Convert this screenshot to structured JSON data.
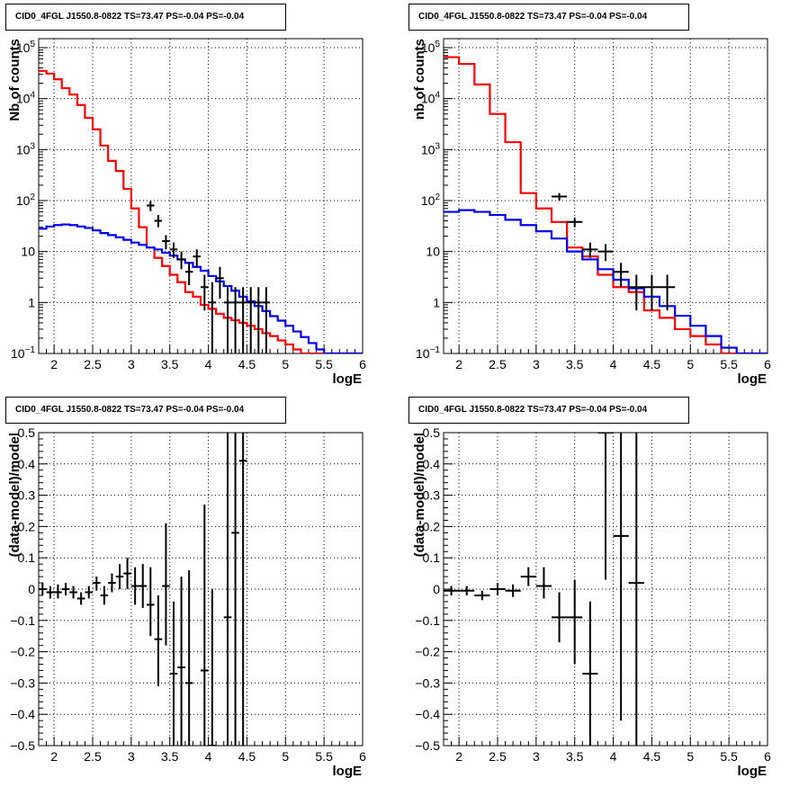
{
  "chart_data": [
    {
      "type": "line",
      "title": "CID0_4FGL J1550.8-0822 TS=73.47 PS=-0.04 PS=-0.04",
      "xlabel": "logE",
      "ylabel": "Nb of counts",
      "xlim": [
        1.8,
        6
      ],
      "ylim": [
        0.1,
        150000
      ],
      "yscale": "log",
      "grid": true,
      "xticks": [
        "2",
        "2.5",
        "3",
        "3.5",
        "4",
        "4.5",
        "5",
        "5.5",
        "6"
      ],
      "yticks": [
        {
          "v": 0.1,
          "label": "10",
          "exp": "−1"
        },
        {
          "v": 1,
          "label": "1",
          "exp": ""
        },
        {
          "v": 10,
          "label": "10",
          "exp": ""
        },
        {
          "v": 100,
          "label": "10",
          "exp": "2"
        },
        {
          "v": 1000,
          "label": "10",
          "exp": "3"
        },
        {
          "v": 10000,
          "label": "10",
          "exp": "4"
        },
        {
          "v": 100000,
          "label": "10",
          "exp": "5"
        }
      ],
      "bin_width": 0.1,
      "series": [
        {
          "color": "#ff0000",
          "kind": "step",
          "x": [
            1.8,
            1.9,
            2.0,
            2.1,
            2.2,
            2.3,
            2.4,
            2.5,
            2.6,
            2.7,
            2.8,
            2.9,
            3.0,
            3.1,
            3.2,
            3.3,
            3.4,
            3.5,
            3.6,
            3.7,
            3.8,
            3.9,
            4.0,
            4.1,
            4.2,
            4.3,
            4.4,
            4.5,
            4.6,
            4.7,
            4.8,
            4.9,
            5.0,
            5.1,
            5.2,
            5.3,
            5.4,
            5.5,
            5.6,
            5.7,
            5.8,
            5.9
          ],
          "values": [
            35000,
            31000,
            24000,
            16000,
            12000,
            7500,
            4200,
            2500,
            1200,
            600,
            380,
            170,
            70,
            30,
            12,
            7.5,
            5.2,
            3.5,
            2.5,
            1.6,
            1.3,
            0.9,
            0.75,
            0.6,
            0.5,
            0.45,
            0.4,
            0.35,
            0.3,
            0.25,
            0.22,
            0.18,
            0.15,
            0.12,
            0.1,
            0.1,
            0.1,
            0.1,
            0.1,
            0.1,
            0.1,
            0.1
          ]
        },
        {
          "color": "#0000ee",
          "kind": "step",
          "x": [
            1.8,
            1.9,
            2.0,
            2.1,
            2.2,
            2.3,
            2.4,
            2.5,
            2.6,
            2.7,
            2.8,
            2.9,
            3.0,
            3.1,
            3.2,
            3.3,
            3.4,
            3.5,
            3.6,
            3.7,
            3.8,
            3.9,
            4.0,
            4.1,
            4.2,
            4.3,
            4.4,
            4.5,
            4.6,
            4.7,
            4.8,
            4.9,
            5.0,
            5.1,
            5.2,
            5.3,
            5.4,
            5.5,
            5.6,
            5.7,
            5.8,
            5.9
          ],
          "values": [
            28,
            31,
            33,
            34,
            33,
            31,
            29,
            26,
            23,
            21,
            19,
            17,
            15,
            13.5,
            12,
            11,
            9.5,
            8.3,
            7,
            6,
            5,
            4.2,
            3.3,
            2.6,
            2.1,
            1.7,
            1.3,
            1.05,
            0.85,
            0.68,
            0.54,
            0.44,
            0.35,
            0.27,
            0.21,
            0.16,
            0.12,
            0.1,
            0.1,
            0.1,
            0.1,
            0.1
          ]
        },
        {
          "color": "#000000",
          "kind": "errorbar",
          "points": [
            {
              "x": 3.25,
              "y": 80,
              "lo": 62,
              "hi": 98
            },
            {
              "x": 3.35,
              "y": 40,
              "lo": 30,
              "hi": 52
            },
            {
              "x": 3.45,
              "y": 16,
              "lo": 11,
              "hi": 21
            },
            {
              "x": 3.55,
              "y": 11,
              "lo": 7.5,
              "hi": 15
            },
            {
              "x": 3.65,
              "y": 7,
              "lo": 4.5,
              "hi": 10
            },
            {
              "x": 3.75,
              "y": 4,
              "lo": 2.2,
              "hi": 6
            },
            {
              "x": 3.85,
              "y": 8,
              "lo": 5,
              "hi": 11
            },
            {
              "x": 3.95,
              "y": 2,
              "lo": 0.7,
              "hi": 3.5
            },
            {
              "x": 4.05,
              "y": 1,
              "lo": 0.1,
              "hi": 2.5
            },
            {
              "x": 4.15,
              "y": 3,
              "lo": 1.2,
              "hi": 5
            },
            {
              "x": 4.25,
              "y": 1,
              "lo": 0.1,
              "hi": 2
            },
            {
              "x": 4.35,
              "y": 1,
              "lo": 0.1,
              "hi": 2
            },
            {
              "x": 4.45,
              "y": 1,
              "lo": 0.1,
              "hi": 2
            },
            {
              "x": 4.55,
              "y": 1,
              "lo": 0.1,
              "hi": 2
            },
            {
              "x": 4.65,
              "y": 1,
              "lo": 0.1,
              "hi": 2
            },
            {
              "x": 4.75,
              "y": 1,
              "lo": 0.1,
              "hi": 2
            }
          ],
          "xerr": 0.05
        }
      ]
    },
    {
      "type": "line",
      "title": "CID0_4FGL J1550.8-0822 TS=73.47 PS=-0.04 PS=-0.04",
      "xlabel": "logE",
      "ylabel": "nb of counts",
      "xlim": [
        1.8,
        6
      ],
      "ylim": [
        0.1,
        150000
      ],
      "yscale": "log",
      "grid": true,
      "xticks": [
        "2",
        "2.5",
        "3",
        "3.5",
        "4",
        "4.5",
        "5",
        "5.5",
        "6"
      ],
      "yticks": [
        {
          "v": 0.1,
          "label": "10",
          "exp": "−1"
        },
        {
          "v": 1,
          "label": "1",
          "exp": ""
        },
        {
          "v": 10,
          "label": "10",
          "exp": ""
        },
        {
          "v": 100,
          "label": "10",
          "exp": "2"
        },
        {
          "v": 1000,
          "label": "10",
          "exp": "3"
        },
        {
          "v": 10000,
          "label": "10",
          "exp": "4"
        },
        {
          "v": 100000,
          "label": "10",
          "exp": "5"
        }
      ],
      "bin_width": 0.2,
      "series": [
        {
          "color": "#ff0000",
          "kind": "step",
          "x": [
            1.8,
            2.0,
            2.2,
            2.4,
            2.6,
            2.8,
            3.0,
            3.2,
            3.4,
            3.6,
            3.8,
            4.0,
            4.2,
            4.4,
            4.6,
            4.8,
            5.0,
            5.2,
            5.4,
            5.6,
            5.8
          ],
          "values": [
            65000,
            48000,
            19000,
            5000,
            1400,
            140,
            70,
            38,
            12,
            8,
            3.5,
            2,
            1.6,
            0.7,
            0.5,
            0.3,
            0.22,
            0.15,
            0.1,
            0.1,
            0.1
          ]
        },
        {
          "color": "#0000ee",
          "kind": "step",
          "x": [
            1.8,
            2.0,
            2.2,
            2.4,
            2.6,
            2.8,
            3.0,
            3.2,
            3.4,
            3.6,
            3.8,
            4.0,
            4.2,
            4.4,
            4.6,
            4.8,
            5.0,
            5.2,
            5.4,
            5.6,
            5.8
          ],
          "values": [
            60,
            65,
            60,
            52,
            42,
            33,
            25,
            18,
            10,
            7,
            4.5,
            2.8,
            1.9,
            1.3,
            0.85,
            0.55,
            0.35,
            0.22,
            0.13,
            0.1,
            0.1
          ]
        },
        {
          "color": "#000000",
          "kind": "errorbar",
          "points": [
            {
              "x": 3.3,
              "y": 120,
              "lo": 100,
              "hi": 140
            },
            {
              "x": 3.5,
              "y": 38,
              "lo": 30,
              "hi": 46
            },
            {
              "x": 3.7,
              "y": 11,
              "lo": 7.5,
              "hi": 15
            },
            {
              "x": 3.9,
              "y": 10,
              "lo": 6.5,
              "hi": 14
            },
            {
              "x": 4.1,
              "y": 4,
              "lo": 2,
              "hi": 6
            },
            {
              "x": 4.3,
              "y": 2,
              "lo": 0.7,
              "hi": 3.5
            },
            {
              "x": 4.5,
              "y": 2,
              "lo": 0.7,
              "hi": 3.5
            },
            {
              "x": 4.7,
              "y": 2,
              "lo": 0.7,
              "hi": 3.5
            }
          ],
          "xerr": 0.1
        }
      ]
    },
    {
      "type": "scatter",
      "title": "CID0_4FGL J1550.8-0822 TS=73.47 PS=-0.04 PS=-0.04",
      "xlabel": "logE",
      "ylabel": "(data-model)/model",
      "xlim": [
        1.8,
        6
      ],
      "ylim": [
        -0.5,
        0.5
      ],
      "grid": true,
      "xticks": [
        "2",
        "2.5",
        "3",
        "3.5",
        "4",
        "4.5",
        "5",
        "5.5",
        "6"
      ],
      "yticks": [
        "−0.5",
        "−0.4",
        "−0.3",
        "−0.2",
        "−0.1",
        "0",
        "0.1",
        "0.2",
        "0.3",
        "0.4",
        "0.5"
      ],
      "xerr": 0.05,
      "points": [
        {
          "x": 1.85,
          "y": 0.0,
          "lo": -0.02,
          "hi": 0.02
        },
        {
          "x": 1.95,
          "y": -0.01,
          "lo": -0.03,
          "hi": 0.01
        },
        {
          "x": 2.05,
          "y": -0.01,
          "lo": -0.03,
          "hi": 0.015
        },
        {
          "x": 2.15,
          "y": 0.0,
          "lo": -0.02,
          "hi": 0.02
        },
        {
          "x": 2.25,
          "y": -0.01,
          "lo": -0.03,
          "hi": 0.01
        },
        {
          "x": 2.35,
          "y": -0.03,
          "lo": -0.05,
          "hi": -0.01
        },
        {
          "x": 2.45,
          "y": -0.01,
          "lo": -0.03,
          "hi": 0.01
        },
        {
          "x": 2.55,
          "y": 0.02,
          "lo": -0.005,
          "hi": 0.04
        },
        {
          "x": 2.65,
          "y": -0.02,
          "lo": -0.05,
          "hi": 0.01
        },
        {
          "x": 2.75,
          "y": 0.02,
          "lo": -0.01,
          "hi": 0.05
        },
        {
          "x": 2.85,
          "y": 0.04,
          "lo": 0.0,
          "hi": 0.08
        },
        {
          "x": 2.95,
          "y": 0.05,
          "lo": 0.0,
          "hi": 0.1
        },
        {
          "x": 3.05,
          "y": 0.01,
          "lo": -0.05,
          "hi": 0.07
        },
        {
          "x": 3.15,
          "y": 0.01,
          "lo": -0.06,
          "hi": 0.08
        },
        {
          "x": 3.25,
          "y": -0.05,
          "lo": -0.15,
          "hi": 0.07
        },
        {
          "x": 3.35,
          "y": -0.16,
          "lo": -0.31,
          "hi": -0.02
        },
        {
          "x": 3.45,
          "y": 0.01,
          "lo": -0.18,
          "hi": 0.21
        },
        {
          "x": 3.55,
          "y": -0.27,
          "lo": -0.5,
          "hi": -0.04
        },
        {
          "x": 3.65,
          "y": -0.25,
          "lo": -0.5,
          "hi": 0.04
        },
        {
          "x": 3.75,
          "y": -0.3,
          "lo": -0.5,
          "hi": 0.06
        },
        {
          "x": 3.95,
          "y": -0.26,
          "lo": -0.5,
          "hi": 0.27
        },
        {
          "x": 4.05,
          "y": -0.5,
          "lo": -0.5,
          "hi": 0.0
        },
        {
          "x": 4.25,
          "y": -0.09,
          "lo": -0.5,
          "hi": 0.5
        },
        {
          "x": 4.35,
          "y": 0.18,
          "lo": -0.5,
          "hi": 0.5
        },
        {
          "x": 4.45,
          "y": 0.41,
          "lo": -0.5,
          "hi": 0.5
        }
      ]
    },
    {
      "type": "scatter",
      "title": "CID0_4FGL J1550.8-0822 TS=73.47 PS=-0.04 PS=-0.04",
      "xlabel": "logE",
      "ylabel": "(data-model)/model",
      "xlim": [
        1.8,
        6
      ],
      "ylim": [
        -0.5,
        0.5
      ],
      "grid": true,
      "xticks": [
        "2",
        "2.5",
        "3",
        "3.5",
        "4",
        "4.5",
        "5",
        "5.5",
        "6"
      ],
      "yticks": [
        "−0.5",
        "−0.4",
        "−0.3",
        "−0.2",
        "−0.1",
        "0",
        "0.1",
        "0.2",
        "0.3",
        "0.4",
        "0.5"
      ],
      "xerr": 0.1,
      "points": [
        {
          "x": 1.9,
          "y": -0.005,
          "lo": -0.02,
          "hi": 0.01
        },
        {
          "x": 2.1,
          "y": -0.005,
          "lo": -0.02,
          "hi": 0.01
        },
        {
          "x": 2.3,
          "y": -0.02,
          "lo": -0.035,
          "hi": -0.005
        },
        {
          "x": 2.5,
          "y": 0.0,
          "lo": -0.02,
          "hi": 0.02
        },
        {
          "x": 2.7,
          "y": -0.005,
          "lo": -0.025,
          "hi": 0.015
        },
        {
          "x": 2.9,
          "y": 0.04,
          "lo": 0.01,
          "hi": 0.07
        },
        {
          "x": 3.1,
          "y": 0.01,
          "lo": -0.03,
          "hi": 0.07
        },
        {
          "x": 3.3,
          "y": -0.09,
          "lo": -0.17,
          "hi": -0.01
        },
        {
          "x": 3.5,
          "y": -0.09,
          "lo": -0.24,
          "hi": 0.03
        },
        {
          "x": 3.7,
          "y": -0.27,
          "lo": -0.5,
          "hi": -0.04
        },
        {
          "x": 3.9,
          "y": 0.5,
          "lo": 0.03,
          "hi": 0.5
        },
        {
          "x": 4.1,
          "y": 0.17,
          "lo": -0.42,
          "hi": 0.5
        },
        {
          "x": 4.3,
          "y": 0.02,
          "lo": -0.5,
          "hi": 0.5
        }
      ]
    }
  ]
}
